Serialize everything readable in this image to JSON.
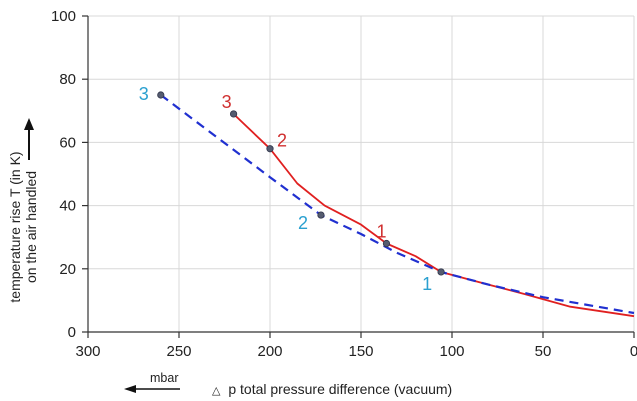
{
  "chart_data": {
    "type": "line",
    "x_axis": {
      "min": 0,
      "max": 300,
      "reversed": true,
      "ticks": [
        300,
        250,
        200,
        150,
        100,
        50,
        0
      ],
      "tick_labels": [
        "300",
        "250",
        "200",
        "150",
        "100",
        "50",
        "0"
      ],
      "label_delta_symbol": "△",
      "label": "p total pressure difference (vacuum)",
      "unit": "mbar"
    },
    "y_axis": {
      "min": 0,
      "max": 100,
      "ticks": [
        0,
        20,
        40,
        60,
        80,
        100
      ],
      "tick_labels": [
        "0",
        "20",
        "40",
        "60",
        "80",
        "100"
      ],
      "label_line1": "temperature rise T (in K)",
      "label_line2": "on the air handled"
    },
    "grid": true,
    "series": [
      {
        "style": "solid",
        "color": "#e02020",
        "x": [
          220,
          200,
          185,
          170,
          150,
          136,
          120,
          106,
          80,
          60,
          35,
          0
        ],
        "y": [
          69,
          58,
          47,
          40,
          34,
          28,
          24,
          19,
          15,
          12,
          8,
          5
        ],
        "markers": [
          {
            "label": "1",
            "x": 136,
            "y": 28
          },
          {
            "label": "2",
            "x": 200,
            "y": 58
          },
          {
            "label": "3",
            "x": 220,
            "y": 69
          }
        ]
      },
      {
        "style": "dashed",
        "color": "#2030d0",
        "x": [
          260,
          230,
          200,
          172,
          150,
          130,
          106,
          80,
          50,
          0
        ],
        "y": [
          75,
          62,
          49,
          37,
          31,
          25,
          19,
          15,
          11,
          6
        ],
        "markers": [
          {
            "label": "1",
            "x": 106,
            "y": 19
          },
          {
            "label": "2",
            "x": 172,
            "y": 37
          },
          {
            "label": "3",
            "x": 260,
            "y": 75
          }
        ]
      }
    ],
    "colors": {
      "solid_label": "#d03030",
      "dashed_label": "#2aa0d0",
      "marker_fill": "#555c70",
      "marker_stroke": "#30354a",
      "grid": "#d8d8d8",
      "axis": "#333333"
    }
  }
}
